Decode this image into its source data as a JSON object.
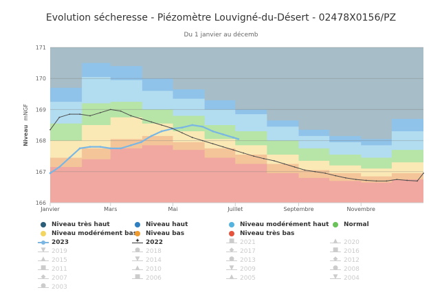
{
  "title": "Evolution sécheresse - Piézomètre Louvigné-du-Désert - 02478X0156/PZ",
  "subtitle": "Du 1 janvier au décemb",
  "chart_data": {
    "type": "area",
    "title": "Evolution sécheresse - Piézomètre Louvigné-du-Désert - 02478X0156/PZ",
    "subtitle": "Du 1 janvier au décemb",
    "ylabel": "Niveau",
    "yunit": "mNGF",
    "ylim": [
      166,
      171
    ],
    "yticks": [
      "166",
      "167",
      "168",
      "169",
      "170",
      "171"
    ],
    "xlim": [
      1,
      366
    ],
    "xticks": [
      {
        "label": "Janvier",
        "day": 1
      },
      {
        "label": "Mars",
        "day": 60
      },
      {
        "label": "Mai",
        "day": 121
      },
      {
        "label": "Juillet",
        "day": 182
      },
      {
        "label": "Septembre",
        "day": 244
      },
      {
        "label": "Novembre",
        "day": 305
      }
    ],
    "grid": true,
    "band_edges": [
      1,
      32,
      60,
      91,
      121,
      152,
      182,
      213,
      244,
      274,
      305,
      335,
      366
    ],
    "bands": [
      {
        "name": "Niveau très bas",
        "color": "#f0a8a0",
        "top": [
          167.15,
          167.4,
          167.75,
          167.85,
          167.7,
          167.45,
          167.25,
          166.95,
          166.8,
          166.7,
          166.65,
          166.75
        ]
      },
      {
        "name": "Niveau bas",
        "color": "#f5c59a",
        "top": [
          167.45,
          167.75,
          168.05,
          168.15,
          167.95,
          167.75,
          167.55,
          167.25,
          167.05,
          166.95,
          166.85,
          166.95
        ]
      },
      {
        "name": "Niveau modérément bas",
        "color": "#fbe9b5",
        "top": [
          168.0,
          168.5,
          168.75,
          168.55,
          168.3,
          168.05,
          167.85,
          167.55,
          167.35,
          167.2,
          167.1,
          167.3
        ]
      },
      {
        "name": "Normal",
        "color": "#b7e4a7",
        "top": [
          168.55,
          169.2,
          169.25,
          169.0,
          168.8,
          168.5,
          168.3,
          168.0,
          167.75,
          167.55,
          167.45,
          167.7
        ]
      },
      {
        "name": "Niveau modérément haut",
        "color": "#b2dcf0",
        "top": [
          169.25,
          170.05,
          169.95,
          169.6,
          169.35,
          169.0,
          168.85,
          168.45,
          168.15,
          167.95,
          167.85,
          168.3
        ]
      },
      {
        "name": "Niveau haut",
        "color": "#8fc3ea",
        "top": [
          169.7,
          170.5,
          170.4,
          170.0,
          169.65,
          169.3,
          169.0,
          168.65,
          168.35,
          168.15,
          168.05,
          168.7
        ]
      },
      {
        "name": "Niveau très haut",
        "color": "#a7bdc7",
        "top": [
          171,
          171,
          171,
          171,
          171,
          171,
          171,
          171,
          171,
          171,
          171,
          171
        ]
      }
    ],
    "series": [
      {
        "name": "2023",
        "color": "#7ab6e3",
        "x": [
          1,
          10,
          20,
          30,
          40,
          50,
          60,
          70,
          80,
          90,
          100,
          110,
          120,
          130,
          140,
          150,
          160,
          170,
          180,
          185
        ],
        "y": [
          166.95,
          167.15,
          167.45,
          167.75,
          167.8,
          167.8,
          167.75,
          167.75,
          167.85,
          167.95,
          168.15,
          168.3,
          168.38,
          168.42,
          168.5,
          168.45,
          168.3,
          168.2,
          168.1,
          168.05
        ]
      },
      {
        "name": "2022",
        "color": "#4a4a4a",
        "x": [
          1,
          10,
          20,
          30,
          40,
          50,
          60,
          70,
          80,
          90,
          100,
          110,
          120,
          130,
          140,
          150,
          160,
          170,
          180,
          190,
          200,
          210,
          220,
          230,
          240,
          250,
          260,
          270,
          280,
          290,
          300,
          310,
          320,
          330,
          340,
          350,
          360,
          366
        ],
        "y": [
          168.35,
          168.75,
          168.85,
          168.85,
          168.8,
          168.9,
          169.0,
          168.95,
          168.8,
          168.7,
          168.6,
          168.5,
          168.4,
          168.25,
          168.1,
          168.0,
          167.9,
          167.8,
          167.7,
          167.6,
          167.5,
          167.42,
          167.35,
          167.25,
          167.15,
          167.05,
          167.0,
          166.95,
          166.87,
          166.8,
          166.75,
          166.72,
          166.7,
          166.7,
          166.75,
          166.72,
          166.7,
          166.95
        ]
      }
    ]
  },
  "legend": {
    "items": [
      {
        "label": "Niveau très haut",
        "kind": "dot",
        "color": "#2b5f79",
        "active": true
      },
      {
        "label": "Niveau haut",
        "kind": "dot",
        "color": "#2f7fc0",
        "active": true
      },
      {
        "label": "Niveau modérément haut",
        "kind": "dot",
        "color": "#55b3e0",
        "active": true
      },
      {
        "label": "Normal",
        "kind": "dot",
        "color": "#6bc25a",
        "active": true
      },
      {
        "label": "Niveau modérément bas",
        "kind": "dot",
        "color": "#f2d660",
        "active": true
      },
      {
        "label": "Niveau bas",
        "kind": "dot",
        "color": "#ef9a2e",
        "active": true
      },
      {
        "label": "Niveau très bas",
        "kind": "dot",
        "color": "#e5533d",
        "active": true
      },
      {
        "label": "",
        "kind": "blank",
        "color": "#ffffff",
        "active": false
      },
      {
        "label": "2023",
        "kind": "line-dot",
        "color": "#7ab6e3",
        "active": true
      },
      {
        "label": "2022",
        "kind": "line-glyph",
        "glyph": "✦",
        "color": "#333333",
        "active": true
      },
      {
        "label": "2021",
        "kind": "line-glyph",
        "glyph": "■",
        "color": "#cccccc",
        "active": false
      },
      {
        "label": "2020",
        "kind": "line-glyph",
        "glyph": "▲",
        "color": "#cccccc",
        "active": false
      },
      {
        "label": "2019",
        "kind": "line-glyph",
        "glyph": "▼",
        "color": "#cccccc",
        "active": false
      },
      {
        "label": "2018",
        "kind": "line-glyph",
        "glyph": "●",
        "color": "#cccccc",
        "active": false
      },
      {
        "label": "2017",
        "kind": "line-glyph",
        "glyph": "◆",
        "color": "#cccccc",
        "active": false
      },
      {
        "label": "2016",
        "kind": "line-glyph",
        "glyph": "■",
        "color": "#cccccc",
        "active": false
      },
      {
        "label": "2015",
        "kind": "line-glyph",
        "glyph": "▲",
        "color": "#cccccc",
        "active": false
      },
      {
        "label": "2014",
        "kind": "line-glyph",
        "glyph": "▼",
        "color": "#cccccc",
        "active": false
      },
      {
        "label": "2013",
        "kind": "line-glyph",
        "glyph": "●",
        "color": "#cccccc",
        "active": false
      },
      {
        "label": "2012",
        "kind": "line-glyph",
        "glyph": "◆",
        "color": "#cccccc",
        "active": false
      },
      {
        "label": "2011",
        "kind": "line-glyph",
        "glyph": "■",
        "color": "#cccccc",
        "active": false
      },
      {
        "label": "2010",
        "kind": "line-glyph",
        "glyph": "▲",
        "color": "#cccccc",
        "active": false
      },
      {
        "label": "2009",
        "kind": "line-glyph",
        "glyph": "▼",
        "color": "#cccccc",
        "active": false
      },
      {
        "label": "2008",
        "kind": "line-glyph",
        "glyph": "●",
        "color": "#cccccc",
        "active": false
      },
      {
        "label": "2007",
        "kind": "line-glyph",
        "glyph": "◆",
        "color": "#cccccc",
        "active": false
      },
      {
        "label": "2006",
        "kind": "line-glyph",
        "glyph": "■",
        "color": "#cccccc",
        "active": false
      },
      {
        "label": "2005",
        "kind": "line-glyph",
        "glyph": "▲",
        "color": "#cccccc",
        "active": false
      },
      {
        "label": "2004",
        "kind": "line-glyph",
        "glyph": "▼",
        "color": "#cccccc",
        "active": false
      },
      {
        "label": "2003",
        "kind": "line-glyph",
        "glyph": "●",
        "color": "#cccccc",
        "active": false
      }
    ]
  }
}
